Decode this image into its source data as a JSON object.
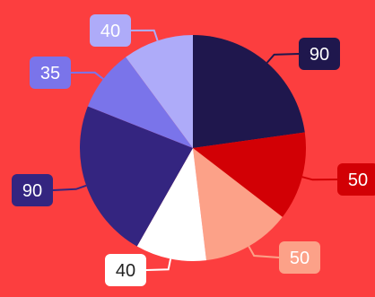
{
  "chart_data": {
    "type": "pie",
    "values": [
      90,
      50,
      50,
      40,
      90,
      35,
      40
    ],
    "labels": [
      "90",
      "50",
      "50",
      "40",
      "90",
      "35",
      "40"
    ],
    "colors": [
      "#1f174d",
      "#d20005",
      "#fca188",
      "#ffffff",
      "#342580",
      "#7a74ea",
      "#aeabf9"
    ],
    "label_box_colors": [
      "#1f174d",
      "#d20005",
      "#fca188",
      "#ffffff",
      "#342580",
      "#7a74ea",
      "#aeabf9"
    ],
    "label_text_colors": [
      "#ffffff",
      "#ffffff",
      "#ffffff",
      "#222222",
      "#ffffff",
      "#ffffff",
      "#ffffff"
    ],
    "start_angle": "12 o'clock",
    "direction": "clockwise",
    "legend": "none",
    "title": ""
  }
}
